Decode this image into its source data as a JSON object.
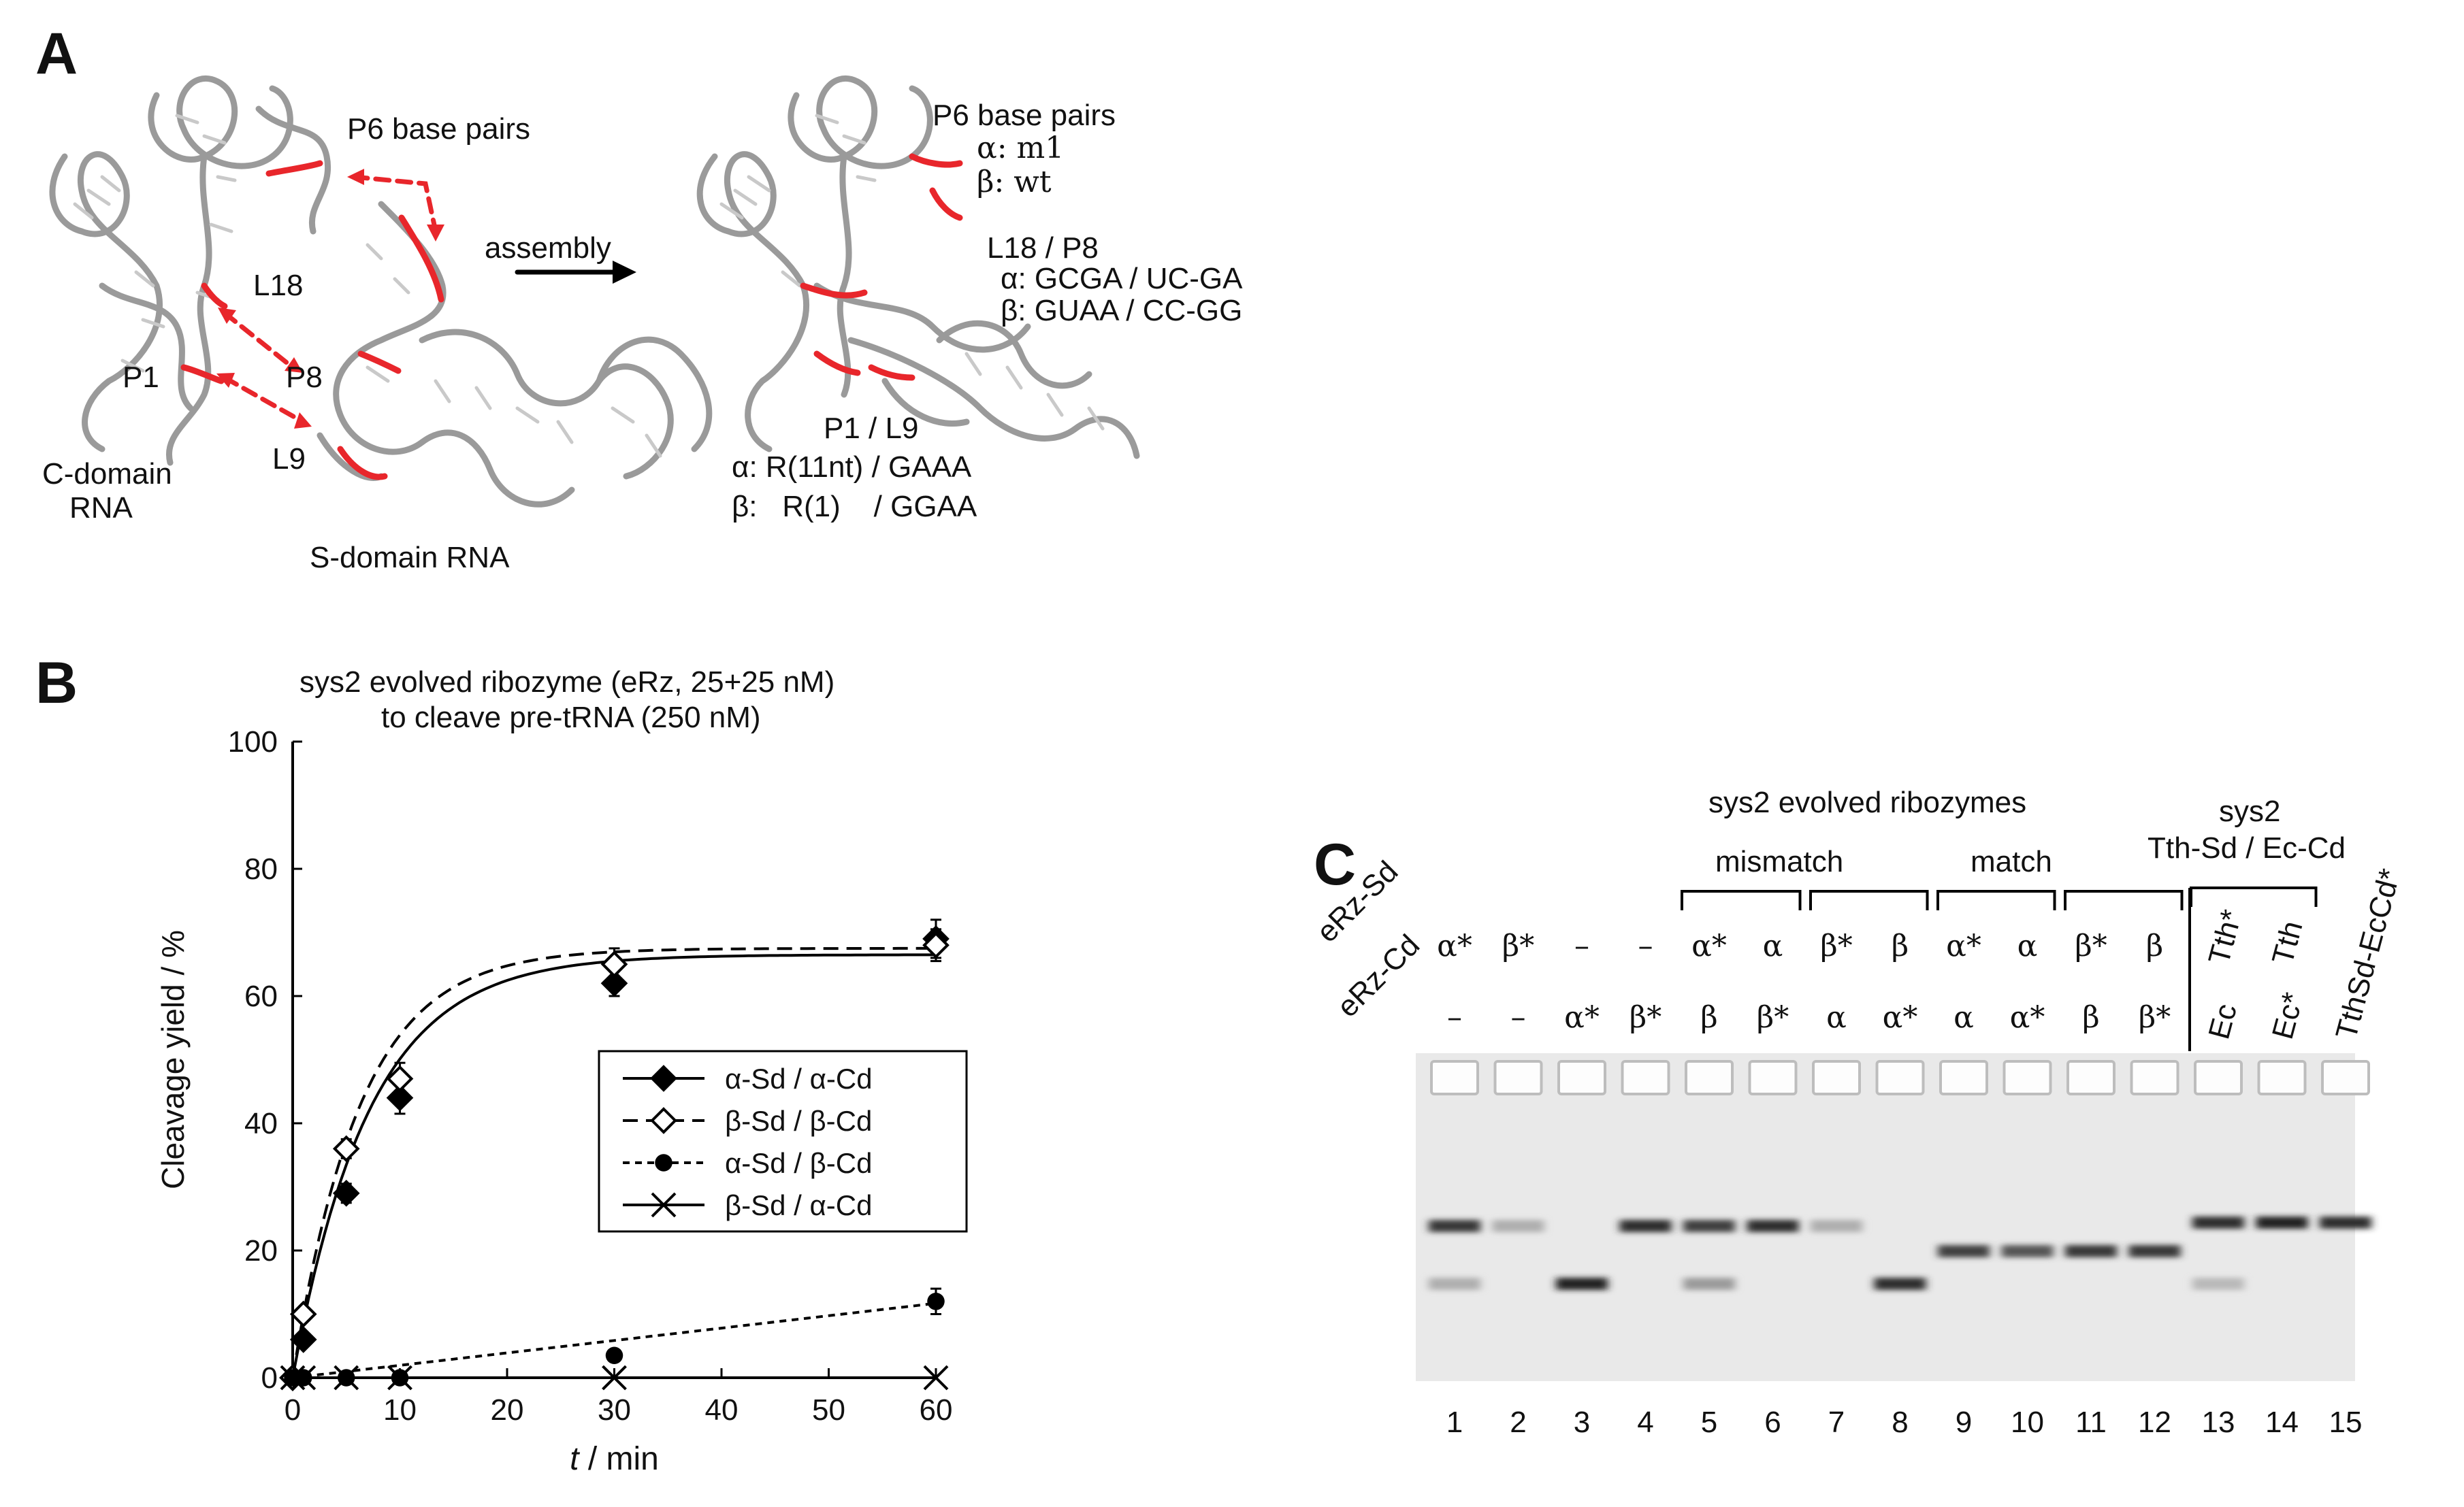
{
  "panelA": {
    "letter": "A",
    "left": {
      "p6": "P6 base pairs",
      "l18": "L18",
      "p1": "P1",
      "p8": "P8",
      "l9": "L9",
      "cdomain": [
        "C-domain",
        "RNA"
      ],
      "sdomain": "S-domain RNA"
    },
    "assembly": "assembly",
    "right": {
      "p6": "P6 base pairs",
      "p6_alpha": "α: m1",
      "p6_beta": "β: wt",
      "l18p8": "L18 / P8",
      "l18p8_alpha": "α: GCGA / UC-GA",
      "l18p8_beta": "β: GUAA / CC-GG",
      "p1l9": "P1 / L9",
      "p1l9_alpha": "α: R(11nt) / GAAA",
      "p1l9_beta": "β:   R(1)    / GGAA"
    },
    "colors": {
      "highlight": "#e8262b",
      "rna": "#9a9a9a"
    }
  },
  "panelB": {
    "letter": "B",
    "title_line1": "sys2 evolved ribozyme (eRz, 25+25 nM)",
    "title_line2": "to cleave pre-tRNA (250 nM)",
    "chart_data": {
      "type": "line",
      "title": "sys2 evolved ribozyme (eRz, 25+25 nM) to cleave pre-tRNA (250 nM)",
      "xlabel_italic": "t",
      "xlabel_rest": " / min",
      "ylabel": "Cleavage yield / %",
      "xlim": [
        0,
        60
      ],
      "ylim": [
        0,
        100
      ],
      "xticks": [
        0,
        10,
        20,
        30,
        40,
        50,
        60
      ],
      "yticks": [
        0,
        20,
        40,
        60,
        80,
        100
      ],
      "grid": false,
      "legend_position": "center-right",
      "x": [
        0,
        1,
        5,
        10,
        30,
        60
      ],
      "series": [
        {
          "name": "α-Sd / α-Cd",
          "marker": "diamond-filled",
          "line": "solid",
          "values": [
            0,
            6,
            29,
            44,
            62,
            69
          ],
          "errors": [
            0,
            1,
            1.5,
            2.5,
            2,
            3
          ]
        },
        {
          "name": "β-Sd / β-Cd",
          "marker": "diamond-open",
          "line": "dashed",
          "values": [
            0,
            10,
            36,
            47,
            65,
            68
          ],
          "errors": [
            0,
            1,
            1.5,
            2.5,
            2.5,
            2.5
          ]
        },
        {
          "name": "α-Sd / β-Cd",
          "marker": "circle-filled",
          "line": "dotted",
          "values": [
            0,
            0,
            0,
            0,
            3.5,
            12
          ],
          "errors": [
            0,
            0,
            0,
            0,
            0.5,
            2
          ]
        },
        {
          "name": "β-Sd / α-Cd",
          "marker": "cross",
          "line": "solid",
          "values": [
            0,
            0,
            0,
            0,
            0,
            0
          ],
          "errors": [
            0,
            0,
            0,
            0,
            0,
            0
          ]
        }
      ],
      "fits": [
        {
          "name": "α-Sd / α-Cd",
          "line": "solid",
          "a": 66.5,
          "k": 0.14
        },
        {
          "name": "β-Sd / β-Cd",
          "line": "dashed",
          "a": 67.5,
          "k": 0.16
        },
        {
          "name": "α-Sd / β-Cd",
          "line": "dotted",
          "slope": 0.195
        }
      ]
    }
  },
  "panelC": {
    "letter": "C",
    "header_top": "sys2 evolved ribozymes",
    "mismatch": "mismatch",
    "match": "match",
    "sys2_right_line1": "sys2",
    "sys2_right_line2": "Tth-Sd / Ec-Cd",
    "row_sd": "eRz-Sd",
    "row_cd": "eRz-Cd",
    "sd_labels": [
      "α*",
      "β*",
      "–",
      "–",
      "α*",
      "α",
      "β*",
      "β",
      "α*",
      "α",
      "β*",
      "β"
    ],
    "cd_labels": [
      "–",
      "–",
      "α*",
      "β*",
      "β",
      "β*",
      "α",
      "α*",
      "α",
      "α*",
      "β",
      "β*"
    ],
    "lanes_13_15_top": [
      "Tth*",
      "Tth"
    ],
    "lanes_13_15_bottom": [
      "Ec",
      "Ec*",
      "TthSd-EcCd*"
    ],
    "lane_numbers": [
      "1",
      "2",
      "3",
      "4",
      "5",
      "6",
      "7",
      "8",
      "9",
      "10",
      "11",
      "12",
      "13",
      "14",
      "15"
    ],
    "gel": {
      "upper_band_intensity": [
        0.85,
        0.25,
        0,
        0.9,
        0.8,
        0.9,
        0.25,
        0,
        0,
        0,
        0,
        0,
        0.9,
        0.95,
        0.9
      ],
      "lower_band_intensity": [
        0.25,
        0,
        0.95,
        0,
        0.35,
        0,
        0,
        0.9,
        0,
        0,
        0,
        0,
        0.2,
        0,
        0
      ],
      "mid_band_intensity": [
        0,
        0,
        0,
        0,
        0,
        0,
        0,
        0,
        0.8,
        0.7,
        0.85,
        0.85,
        0,
        0,
        0
      ]
    }
  }
}
